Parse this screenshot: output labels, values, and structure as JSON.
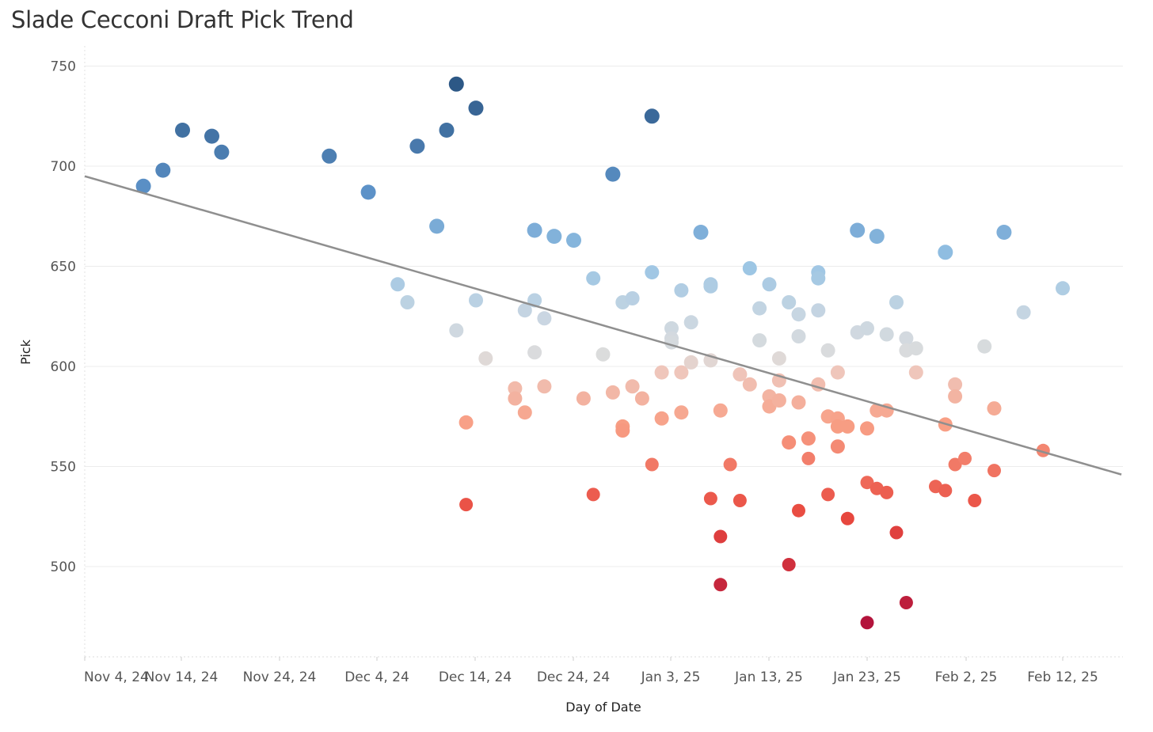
{
  "chart_data": {
    "type": "scatter",
    "title": "Slade Cecconi Draft Pick Trend",
    "xlabel": "Day of Date",
    "ylabel": "Pick",
    "x_ticks": [
      "Nov 4, 24",
      "Nov 14, 24",
      "Nov 24, 24",
      "Dec 4, 24",
      "Dec 14, 24",
      "Dec 24, 24",
      "Jan 3, 25",
      "Jan 13, 25",
      "Jan 23, 25",
      "Feb 2, 25",
      "Feb 12, 25"
    ],
    "y_ticks": [
      500,
      550,
      600,
      650,
      700,
      750
    ],
    "xlim_days": [
      0,
      106
    ],
    "ylim": [
      455,
      755
    ],
    "x_unit": "days since Nov 4, 24",
    "grid": true,
    "color_scale": {
      "low": "#b3143c",
      "mid": "#dcdcdc",
      "high": "#2c5785",
      "center": 605
    },
    "trend_line": {
      "x": [
        0,
        106
      ],
      "y": [
        695,
        546
      ]
    },
    "points": [
      {
        "x": 6,
        "y": 690
      },
      {
        "x": 8,
        "y": 698
      },
      {
        "x": 10,
        "y": 718
      },
      {
        "x": 13,
        "y": 715
      },
      {
        "x": 14,
        "y": 707
      },
      {
        "x": 25,
        "y": 705
      },
      {
        "x": 29,
        "y": 687
      },
      {
        "x": 32,
        "y": 641
      },
      {
        "x": 33,
        "y": 632
      },
      {
        "x": 34,
        "y": 710
      },
      {
        "x": 36,
        "y": 670
      },
      {
        "x": 37,
        "y": 718
      },
      {
        "x": 38,
        "y": 741
      },
      {
        "x": 38,
        "y": 618
      },
      {
        "x": 39,
        "y": 572
      },
      {
        "x": 39,
        "y": 531
      },
      {
        "x": 40,
        "y": 729
      },
      {
        "x": 40,
        "y": 633
      },
      {
        "x": 41,
        "y": 604
      },
      {
        "x": 44,
        "y": 589
      },
      {
        "x": 44,
        "y": 584
      },
      {
        "x": 45,
        "y": 628
      },
      {
        "x": 45,
        "y": 577
      },
      {
        "x": 46,
        "y": 668
      },
      {
        "x": 46,
        "y": 633
      },
      {
        "x": 46,
        "y": 607
      },
      {
        "x": 47,
        "y": 624
      },
      {
        "x": 47,
        "y": 590
      },
      {
        "x": 48,
        "y": 665
      },
      {
        "x": 50,
        "y": 663
      },
      {
        "x": 51,
        "y": 584
      },
      {
        "x": 52,
        "y": 644
      },
      {
        "x": 52,
        "y": 536
      },
      {
        "x": 53,
        "y": 606
      },
      {
        "x": 54,
        "y": 696
      },
      {
        "x": 54,
        "y": 587
      },
      {
        "x": 55,
        "y": 632
      },
      {
        "x": 55,
        "y": 570
      },
      {
        "x": 55,
        "y": 568
      },
      {
        "x": 56,
        "y": 634
      },
      {
        "x": 56,
        "y": 590
      },
      {
        "x": 57,
        "y": 584
      },
      {
        "x": 58,
        "y": 725
      },
      {
        "x": 58,
        "y": 647
      },
      {
        "x": 58,
        "y": 551
      },
      {
        "x": 59,
        "y": 597
      },
      {
        "x": 59,
        "y": 574
      },
      {
        "x": 60,
        "y": 619
      },
      {
        "x": 60,
        "y": 614
      },
      {
        "x": 60,
        "y": 612
      },
      {
        "x": 61,
        "y": 638
      },
      {
        "x": 61,
        "y": 597
      },
      {
        "x": 61,
        "y": 577
      },
      {
        "x": 62,
        "y": 622
      },
      {
        "x": 62,
        "y": 602
      },
      {
        "x": 63,
        "y": 667
      },
      {
        "x": 64,
        "y": 641
      },
      {
        "x": 64,
        "y": 640
      },
      {
        "x": 64,
        "y": 603
      },
      {
        "x": 64,
        "y": 534
      },
      {
        "x": 65,
        "y": 578
      },
      {
        "x": 65,
        "y": 515
      },
      {
        "x": 65,
        "y": 491
      },
      {
        "x": 66,
        "y": 551
      },
      {
        "x": 67,
        "y": 596
      },
      {
        "x": 67,
        "y": 533
      },
      {
        "x": 68,
        "y": 649
      },
      {
        "x": 68,
        "y": 591
      },
      {
        "x": 69,
        "y": 629
      },
      {
        "x": 69,
        "y": 613
      },
      {
        "x": 70,
        "y": 641
      },
      {
        "x": 70,
        "y": 585
      },
      {
        "x": 70,
        "y": 580
      },
      {
        "x": 71,
        "y": 604
      },
      {
        "x": 71,
        "y": 593
      },
      {
        "x": 71,
        "y": 583
      },
      {
        "x": 72,
        "y": 632
      },
      {
        "x": 72,
        "y": 562
      },
      {
        "x": 72,
        "y": 501
      },
      {
        "x": 73,
        "y": 626
      },
      {
        "x": 73,
        "y": 615
      },
      {
        "x": 73,
        "y": 582
      },
      {
        "x": 73,
        "y": 528
      },
      {
        "x": 74,
        "y": 564
      },
      {
        "x": 74,
        "y": 554
      },
      {
        "x": 75,
        "y": 647
      },
      {
        "x": 75,
        "y": 644
      },
      {
        "x": 75,
        "y": 628
      },
      {
        "x": 75,
        "y": 591
      },
      {
        "x": 76,
        "y": 608
      },
      {
        "x": 76,
        "y": 575
      },
      {
        "x": 76,
        "y": 536
      },
      {
        "x": 77,
        "y": 597
      },
      {
        "x": 77,
        "y": 574
      },
      {
        "x": 77,
        "y": 570
      },
      {
        "x": 77,
        "y": 560
      },
      {
        "x": 78,
        "y": 570
      },
      {
        "x": 78,
        "y": 524
      },
      {
        "x": 79,
        "y": 668
      },
      {
        "x": 79,
        "y": 617
      },
      {
        "x": 80,
        "y": 619
      },
      {
        "x": 80,
        "y": 569
      },
      {
        "x": 80,
        "y": 542
      },
      {
        "x": 80,
        "y": 472
      },
      {
        "x": 81,
        "y": 665
      },
      {
        "x": 81,
        "y": 578
      },
      {
        "x": 81,
        "y": 539
      },
      {
        "x": 82,
        "y": 616
      },
      {
        "x": 82,
        "y": 578
      },
      {
        "x": 82,
        "y": 537
      },
      {
        "x": 83,
        "y": 632
      },
      {
        "x": 83,
        "y": 517
      },
      {
        "x": 84,
        "y": 614
      },
      {
        "x": 84,
        "y": 608
      },
      {
        "x": 84,
        "y": 482
      },
      {
        "x": 85,
        "y": 609
      },
      {
        "x": 85,
        "y": 597
      },
      {
        "x": 87,
        "y": 540
      },
      {
        "x": 88,
        "y": 657
      },
      {
        "x": 88,
        "y": 571
      },
      {
        "x": 88,
        "y": 538
      },
      {
        "x": 89,
        "y": 591
      },
      {
        "x": 89,
        "y": 585
      },
      {
        "x": 89,
        "y": 551
      },
      {
        "x": 90,
        "y": 554
      },
      {
        "x": 91,
        "y": 533
      },
      {
        "x": 92,
        "y": 610
      },
      {
        "x": 93,
        "y": 579
      },
      {
        "x": 93,
        "y": 548
      },
      {
        "x": 94,
        "y": 667
      },
      {
        "x": 96,
        "y": 627
      },
      {
        "x": 98,
        "y": 558
      },
      {
        "x": 100,
        "y": 639
      }
    ]
  }
}
